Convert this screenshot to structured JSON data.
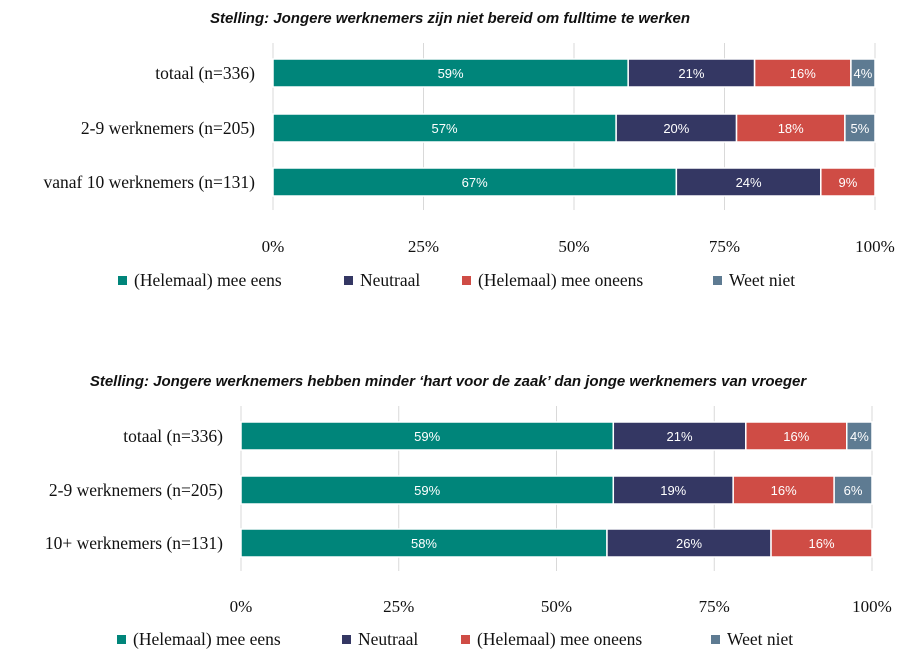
{
  "colors": {
    "agree": "#00857a",
    "neutral": "#343763",
    "disagree": "#cf4c45",
    "dontknow": "#5e7b92"
  },
  "chart_data": [
    {
      "type": "bar",
      "orientation": "horizontal",
      "stacked": true,
      "title": "Stelling: Jongere werknemers zijn niet bereid om fulltime te werken",
      "categories": [
        "totaal (n=336)",
        "2-9 werknemers (n=205)",
        "vanaf 10 werknemers (n=131)"
      ],
      "series": [
        {
          "name": "(Helemaal) mee eens",
          "values": [
            59,
            57,
            67
          ],
          "labels": [
            "59%",
            "57%",
            "67%"
          ]
        },
        {
          "name": "Neutraal",
          "values": [
            21,
            20,
            24
          ],
          "labels": [
            "21%",
            "20%",
            "24%"
          ]
        },
        {
          "name": "(Helemaal) mee oneens",
          "values": [
            16,
            18,
            9
          ],
          "labels": [
            "16%",
            "18%",
            "9%"
          ]
        },
        {
          "name": "Weet niet",
          "values": [
            4,
            5,
            0
          ],
          "labels": [
            "4%",
            "5%",
            ""
          ]
        }
      ],
      "xlim": [
        0,
        100
      ],
      "xticks": [
        "0%",
        "25%",
        "50%",
        "75%",
        "100%"
      ],
      "grid": true,
      "legend": "bottom"
    },
    {
      "type": "bar",
      "orientation": "horizontal",
      "stacked": true,
      "title": "Stelling: Jongere werknemers hebben minder ‘hart voor de zaak’ dan jonge werknemers van vroeger",
      "categories": [
        "totaal (n=336)",
        "2-9 werknemers (n=205)",
        "10+ werknemers (n=131)"
      ],
      "series": [
        {
          "name": "(Helemaal) mee eens",
          "values": [
            59,
            59,
            58
          ],
          "labels": [
            "59%",
            "59%",
            "58%"
          ]
        },
        {
          "name": "Neutraal",
          "values": [
            21,
            19,
            26
          ],
          "labels": [
            "21%",
            "19%",
            "26%"
          ]
        },
        {
          "name": "(Helemaal) mee oneens",
          "values": [
            16,
            16,
            16
          ],
          "labels": [
            "16%",
            "16%",
            "16%"
          ]
        },
        {
          "name": "Weet niet",
          "values": [
            4,
            6,
            0
          ],
          "labels": [
            "4%",
            "6%",
            ""
          ]
        }
      ],
      "xlim": [
        0,
        100
      ],
      "xticks": [
        "0%",
        "25%",
        "50%",
        "75%",
        "100%"
      ],
      "grid": true,
      "legend": "bottom"
    }
  ]
}
